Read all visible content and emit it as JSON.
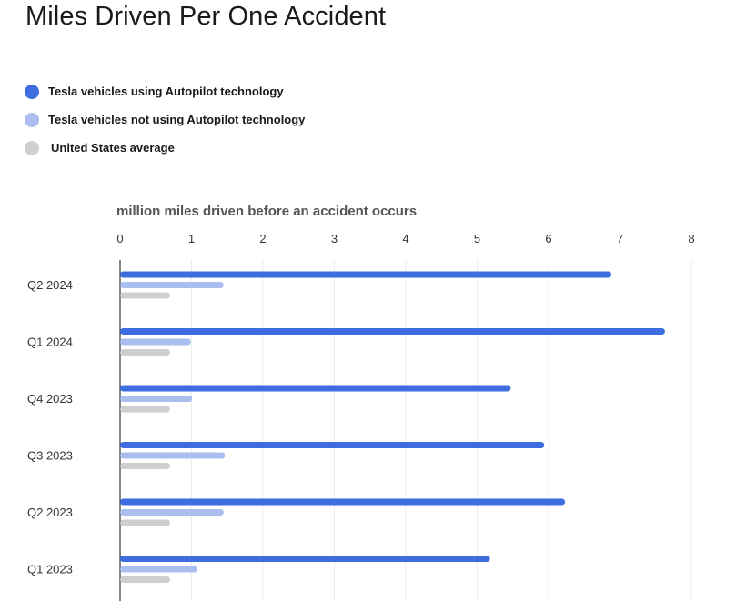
{
  "chart_data": {
    "type": "bar",
    "orientation": "horizontal",
    "title": "Miles Driven Per One Accident",
    "xlabel": "million miles driven before an accident occurs",
    "xlim": [
      0,
      8
    ],
    "xticks": [
      "0",
      "1",
      "2",
      "3",
      "4",
      "5",
      "6",
      "7",
      "8"
    ],
    "grid": true,
    "legend_position": "top-left",
    "categories": [
      "Q2 2024",
      "Q1 2024",
      "Q4 2023",
      "Q3 2023",
      "Q2 2023",
      "Q1 2023"
    ],
    "series": [
      {
        "name": "Tesla vehicles using Autopilot technology",
        "color": "#3e6de0",
        "values": [
          6.88,
          7.63,
          5.47,
          5.94,
          6.23,
          5.18
        ]
      },
      {
        "name": "Tesla vehicles not using Autopilot technology",
        "color": "#aabfef",
        "values": [
          1.45,
          0.99,
          1.01,
          1.47,
          1.45,
          1.08
        ]
      },
      {
        "name": "United States average",
        "color": "#cfcfcf",
        "values": [
          0.7,
          0.7,
          0.7,
          0.7,
          0.7,
          0.7
        ]
      }
    ]
  }
}
